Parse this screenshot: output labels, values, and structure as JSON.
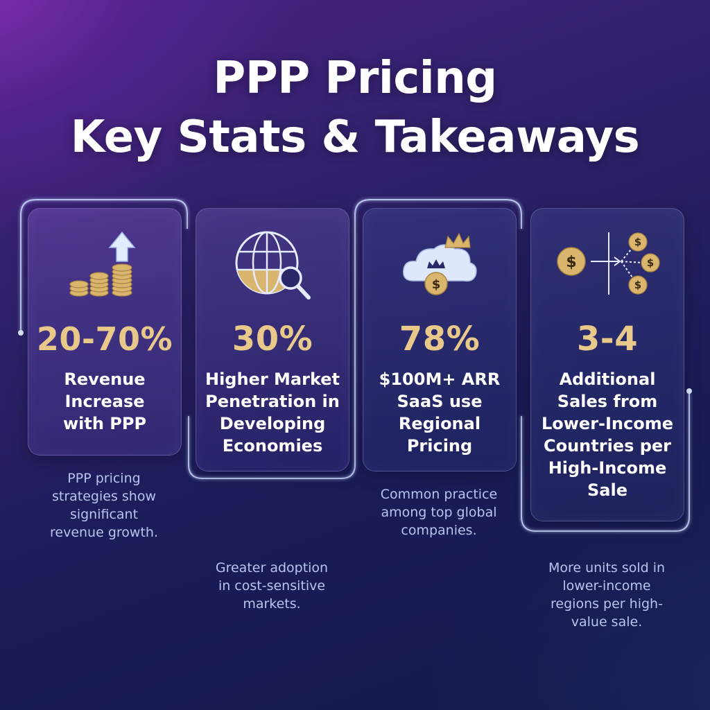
{
  "title": {
    "line1": "PPP Pricing",
    "line2": "Key Stats & Takeaways"
  },
  "colors": {
    "accent_gold": "#e9c98a",
    "caption_blue": "#b8c4ee",
    "glow_line": "#c9d8ff"
  },
  "cards": [
    {
      "icon": "coin-stack-growth-icon",
      "stat": "20-70%",
      "label": "Revenue Increase with PPP",
      "label_lines": [
        "Revenue",
        "Increase",
        "with PPP"
      ],
      "caption_lines": [
        "PPP pricing",
        "strategies show",
        "significant",
        "revenue growth."
      ]
    },
    {
      "icon": "globe-magnifier-icon",
      "stat": "30%",
      "label_lines": [
        "Higher Market",
        "Penetration in",
        "Developing",
        "Economies"
      ],
      "caption_lines": [
        "Greater adoption",
        "in cost-sensitive",
        "markets."
      ]
    },
    {
      "icon": "cloud-crown-dollar-icon",
      "stat": "78%",
      "label_lines": [
        "$100M+ ARR",
        "SaaS use",
        "Regional",
        "Pricing"
      ],
      "caption_lines": [
        "Common practice",
        "among top global",
        "companies."
      ]
    },
    {
      "icon": "dollar-split-arrows-icon",
      "stat": "3-4",
      "label_lines": [
        "Additional",
        "Sales from",
        "Lower-Income",
        "Countries per",
        "High-Income",
        "Sale"
      ],
      "caption_lines": [
        "More units sold in",
        "lower-income",
        "regions per high-",
        "value sale."
      ]
    }
  ]
}
